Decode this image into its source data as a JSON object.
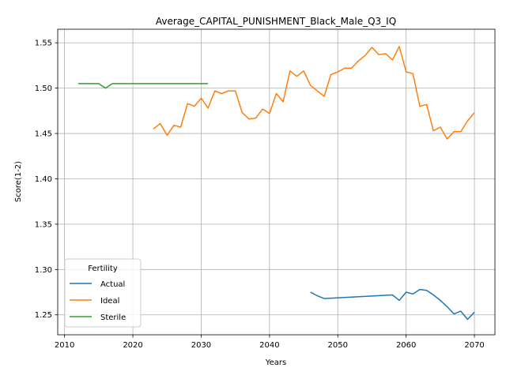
{
  "chart_data": {
    "type": "line",
    "title": "Average_CAPITAL_PUNISHMENT_Black_Male_Q3_IQ",
    "xlabel": "Years",
    "ylabel": "Score(1-2)",
    "xlim": [
      2009,
      2073
    ],
    "ylim": [
      1.228,
      1.565
    ],
    "xticks": [
      2010,
      2020,
      2030,
      2040,
      2050,
      2060,
      2070
    ],
    "yticks": [
      1.25,
      1.3,
      1.35,
      1.4,
      1.45,
      1.5,
      1.55
    ],
    "grid": true,
    "legend": {
      "title": "Fertility",
      "position": "lower-left"
    },
    "series": [
      {
        "name": "Actual",
        "color": "#1f77b4",
        "x": [
          2046,
          2047,
          2048,
          2058,
          2059,
          2060,
          2061,
          2062,
          2063,
          2064,
          2065,
          2066,
          2067,
          2068,
          2069,
          2070
        ],
        "y": [
          1.275,
          1.271,
          1.268,
          1.272,
          1.266,
          1.275,
          1.273,
          1.278,
          1.277,
          1.272,
          1.266,
          1.259,
          1.251,
          1.254,
          1.245,
          1.253
        ]
      },
      {
        "name": "Ideal",
        "color": "#ff7f0e",
        "x": [
          2023,
          2024,
          2025,
          2026,
          2027,
          2028,
          2029,
          2030,
          2031,
          2032,
          2033,
          2034,
          2035,
          2036,
          2037,
          2038,
          2039,
          2040,
          2041,
          2042,
          2043,
          2044,
          2045,
          2046,
          2047,
          2048,
          2049,
          2050,
          2051,
          2052,
          2053,
          2054,
          2055,
          2056,
          2057,
          2058,
          2059,
          2060,
          2061,
          2062,
          2063,
          2064,
          2065,
          2066,
          2067,
          2068,
          2069,
          2070
        ],
        "y": [
          1.455,
          1.461,
          1.448,
          1.459,
          1.457,
          1.483,
          1.48,
          1.489,
          1.478,
          1.497,
          1.494,
          1.497,
          1.497,
          1.473,
          1.466,
          1.467,
          1.477,
          1.472,
          1.494,
          1.485,
          1.519,
          1.513,
          1.519,
          1.503,
          1.497,
          1.491,
          1.515,
          1.518,
          1.522,
          1.522,
          1.53,
          1.536,
          1.545,
          1.537,
          1.538,
          1.531,
          1.546,
          1.518,
          1.516,
          1.48,
          1.482,
          1.453,
          1.457,
          1.444,
          1.452,
          1.452,
          1.464,
          1.473
        ]
      },
      {
        "name": "Sterile",
        "color": "#2ca02c",
        "x": [
          2012,
          2013,
          2014,
          2015,
          2016,
          2017,
          2018,
          2019,
          2020,
          2021,
          2022,
          2023,
          2024,
          2025,
          2026,
          2027,
          2028,
          2029,
          2030,
          2031
        ],
        "y": [
          1.505,
          1.505,
          1.505,
          1.505,
          1.5,
          1.505,
          1.505,
          1.505,
          1.505,
          1.505,
          1.505,
          1.505,
          1.505,
          1.505,
          1.505,
          1.505,
          1.505,
          1.505,
          1.505,
          1.505
        ]
      }
    ]
  }
}
